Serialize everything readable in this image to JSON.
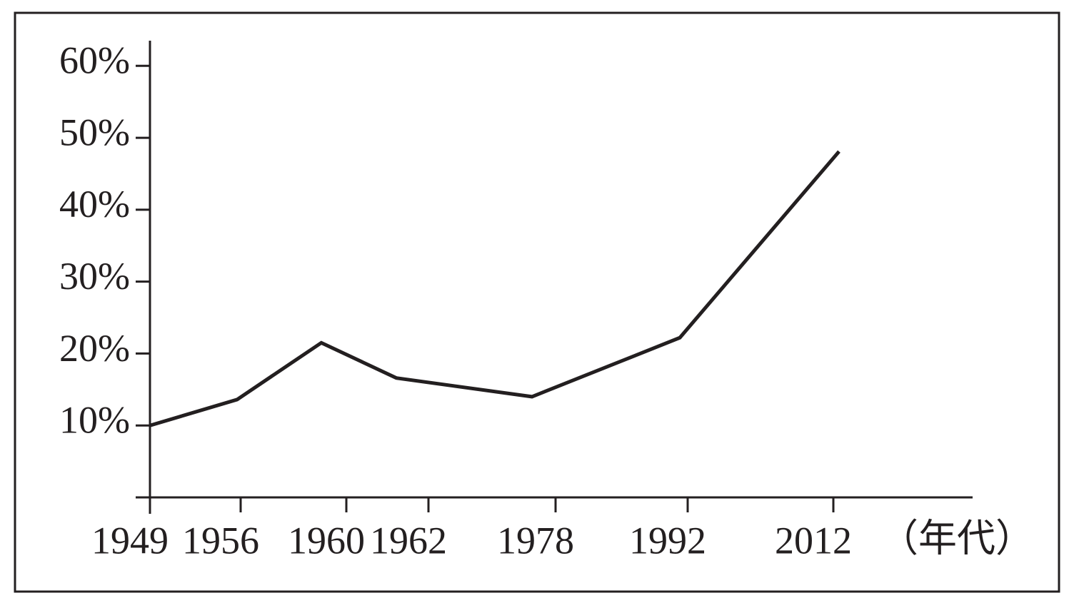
{
  "chart_data": {
    "type": "line",
    "x_label": "（年代）",
    "categories": [
      "1949",
      "1956",
      "1960",
      "1962",
      "1978",
      "1992",
      "2012"
    ],
    "values": [
      10,
      13.6,
      21.5,
      16.6,
      14,
      22.2,
      48.1
    ],
    "color": "#231f20",
    "ylim": [
      0,
      63.5
    ],
    "yticks": [
      {
        "value": 10,
        "label": "10%"
      },
      {
        "value": 20,
        "label": "20%"
      },
      {
        "value": 30,
        "label": "30%"
      },
      {
        "value": 40,
        "label": "40%"
      },
      {
        "value": 50,
        "label": "50%"
      },
      {
        "value": 60,
        "label": "60%"
      }
    ],
    "grid": false
  }
}
